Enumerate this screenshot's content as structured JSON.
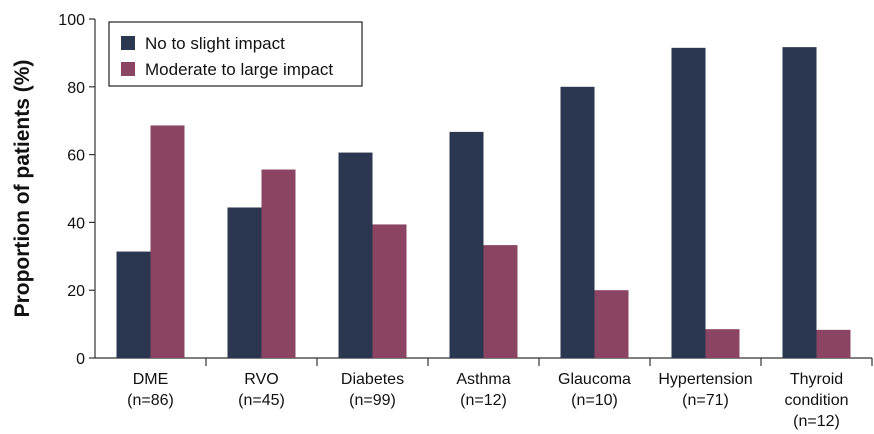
{
  "chart_data": {
    "type": "bar",
    "title": "",
    "xlabel": "",
    "ylabel": "Proportion of patients (%)",
    "ylim": [
      0,
      100
    ],
    "yticks": [
      "0",
      "20",
      "40",
      "60",
      "80",
      "100"
    ],
    "grid": false,
    "legend_position": "top-left",
    "categories": [
      [
        "DME",
        "(n=86)"
      ],
      [
        "RVO",
        "(n=45)"
      ],
      [
        "Diabetes",
        "(n=99)"
      ],
      [
        "Asthma",
        "(n=12)"
      ],
      [
        "Glaucoma",
        "(n=10)"
      ],
      [
        "Hypertension",
        "(n=71)"
      ],
      [
        "Thyroid",
        "condition",
        "(n=12)"
      ]
    ],
    "series": [
      {
        "name": "No to slight impact",
        "color": "#2b3650",
        "values": [
          31.4,
          44.4,
          60.6,
          66.7,
          80.0,
          91.5,
          91.7
        ]
      },
      {
        "name": "Moderate to large impact",
        "color": "#8b4563",
        "values": [
          68.6,
          55.6,
          39.4,
          33.3,
          20.0,
          8.5,
          8.3
        ]
      }
    ]
  }
}
